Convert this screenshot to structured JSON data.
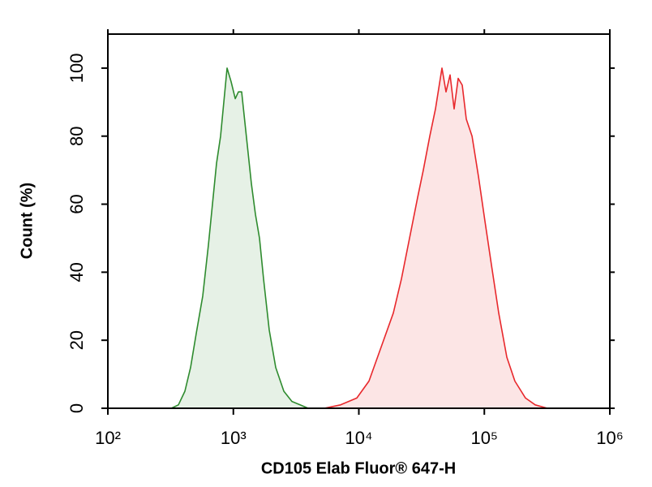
{
  "chart_data": {
    "type": "area",
    "x_label": "CD105 Elab Fluor® 647-H",
    "y_label": "Count (%)",
    "xscale": "log",
    "xlim": [
      100,
      1000000
    ],
    "xticks": [
      {
        "value": 100,
        "label": "10²"
      },
      {
        "value": 1000,
        "label": "10³"
      },
      {
        "value": 10000,
        "label": "10⁴"
      },
      {
        "value": 100000,
        "label": "10⁵"
      },
      {
        "value": 1000000,
        "label": "10⁶"
      }
    ],
    "ylim": [
      0,
      110
    ],
    "yticks": [
      0,
      20,
      40,
      60,
      80,
      100
    ],
    "fill_opacity": 0.12,
    "series": [
      {
        "color": "#2e8b2e",
        "x": [
          320,
          365,
          411,
          456,
          506,
          570,
          633,
          682,
          734,
          791,
          840,
          891,
          960,
          1035,
          1097,
          1164,
          1236,
          1312,
          1393,
          1500,
          1616,
          1740,
          1932,
          2177,
          2525,
          2930,
          3402,
          3947
        ],
        "values": [
          0,
          1,
          5,
          12,
          22,
          33,
          48,
          60,
          72,
          80,
          90,
          100,
          96,
          91,
          93,
          93,
          84,
          75,
          66,
          57,
          50,
          38,
          23,
          12,
          5,
          2,
          1,
          0
        ]
      },
      {
        "color": "#e8282c",
        "x": [
          5300,
          7160,
          9640,
          12050,
          15060,
          18830,
          21840,
          25350,
          29420,
          32660,
          36760,
          40800,
          45930,
          49530,
          53330,
          57450,
          61920,
          66680,
          71850,
          79820,
          89850,
          101100,
          114000,
          130300,
          151100,
          175200,
          212800,
          254400,
          318100
        ],
        "values": [
          0,
          1,
          3,
          8,
          18,
          28,
          38,
          50,
          62,
          70,
          80,
          88,
          100,
          93,
          98,
          88,
          97,
          95,
          85,
          80,
          68,
          55,
          42,
          28,
          15,
          8,
          3,
          1,
          0
        ]
      }
    ]
  }
}
